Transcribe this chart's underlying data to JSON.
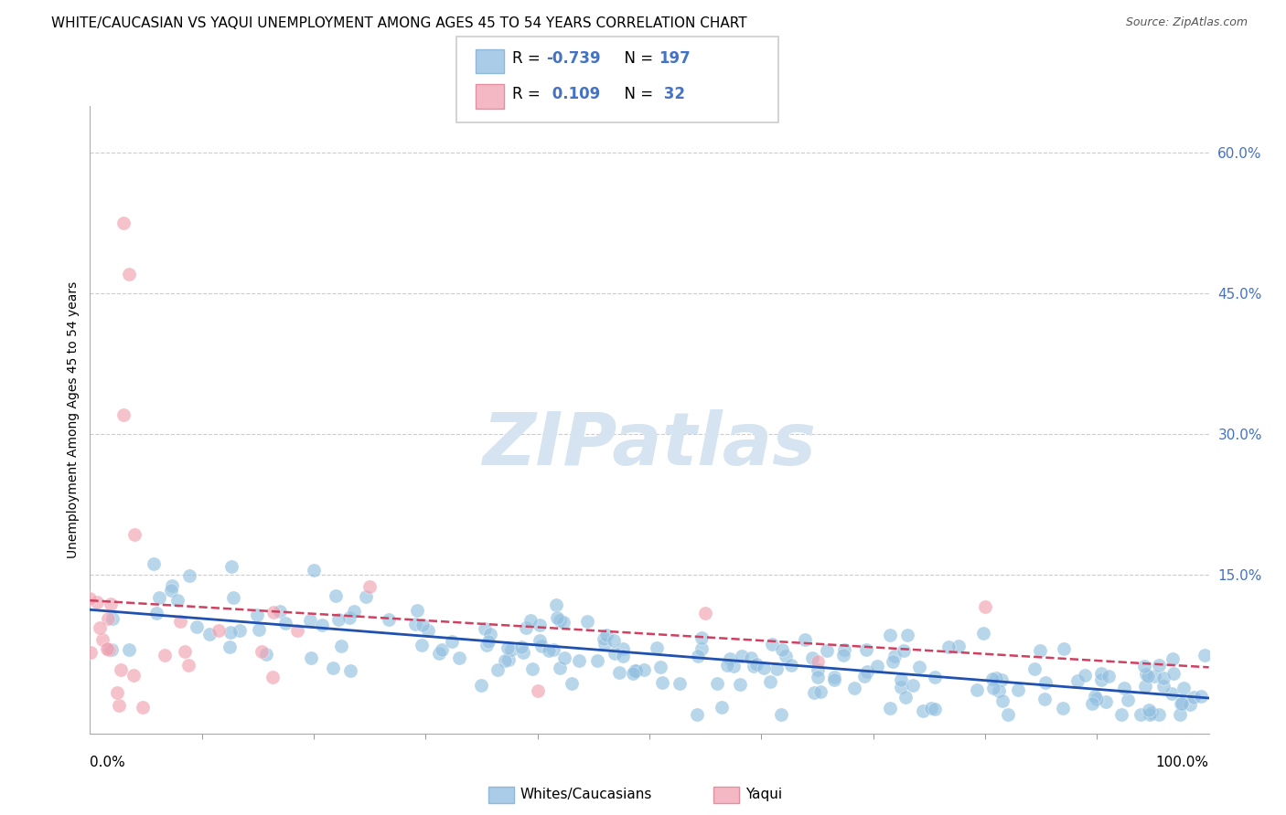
{
  "title": "WHITE/CAUCASIAN VS YAQUI UNEMPLOYMENT AMONG AGES 45 TO 54 YEARS CORRELATION CHART",
  "source": "Source: ZipAtlas.com",
  "ylabel": "Unemployment Among Ages 45 to 54 years",
  "xlim": [
    0,
    100
  ],
  "ylim": [
    -2,
    65
  ],
  "yticks": [
    15,
    30,
    45,
    60
  ],
  "ytick_labels": [
    "15.0%",
    "30.0%",
    "45.0%",
    "60.0%"
  ],
  "xticks": [
    0,
    100
  ],
  "xtick_labels": [
    "0.0%",
    "100.0%"
  ],
  "blue_scatter_color": "#92c0e0",
  "pink_scatter_color": "#f0a0b0",
  "blue_line_color": "#2050b0",
  "pink_line_color": "#d04060",
  "blue_legend_color": "#aacce8",
  "pink_legend_color": "#f4b8c4",
  "watermark": "ZIPatlas",
  "watermark_color": "#d5e4f0",
  "background_color": "#ffffff",
  "grid_color": "#cccccc",
  "title_fontsize": 11,
  "axis_label_fontsize": 10,
  "tick_color": "#4472c4",
  "blue_N": 197,
  "pink_N": 32,
  "blue_R": -0.739,
  "pink_R": 0.109,
  "blue_seed": 42,
  "pink_seed": 123
}
